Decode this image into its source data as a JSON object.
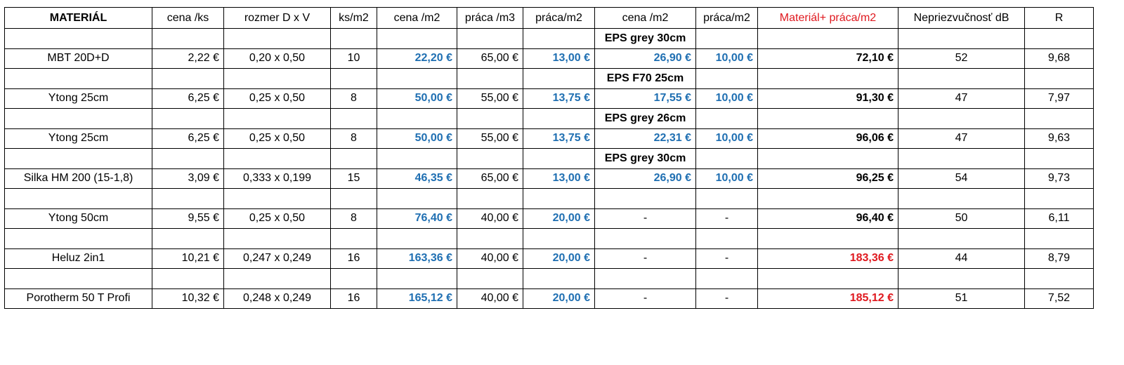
{
  "table": {
    "header": [
      "MATERIÁL",
      "cena /ks",
      "rozmer D x V",
      "ks/m2",
      "cena /m2",
      "práca /m3",
      "práca/m2",
      "cena /m2",
      "práca/m2",
      "Materiál+ práca/m2",
      "Nepriezvučnosť dB",
      "R"
    ],
    "header_colors": {
      "9": "#e0191f"
    },
    "rows": [
      {
        "insulation": "EPS grey 30cm",
        "cells": [
          "MBT 20D+D",
          "2,22 €",
          "0,20 x 0,50",
          "10",
          "22,20 €",
          "65,00 €",
          "13,00 €",
          "26,90 €",
          "10,00 €",
          "72,10 €",
          "52",
          "9,68"
        ]
      },
      {
        "insulation": "EPS F70 25cm",
        "cells": [
          "Ytong 25cm",
          "6,25 €",
          "0,25 x 0,50",
          "8",
          "50,00 €",
          "55,00 €",
          "13,75 €",
          "17,55 €",
          "10,00 €",
          "91,30 €",
          "47",
          "7,97"
        ]
      },
      {
        "insulation": "EPS grey 26cm",
        "cells": [
          "Ytong 25cm",
          "6,25 €",
          "0,25 x 0,50",
          "8",
          "50,00 €",
          "55,00 €",
          "13,75 €",
          "22,31 €",
          "10,00 €",
          "96,06 €",
          "47",
          "9,63"
        ]
      },
      {
        "insulation": "EPS grey 30cm",
        "cells": [
          "Silka HM 200 (15-1,8)",
          "3,09 €",
          "0,333 x 0,199",
          "15",
          "46,35 €",
          "65,00 €",
          "13,00 €",
          "26,90 €",
          "10,00 €",
          "96,25 €",
          "54",
          "9,73"
        ]
      },
      {
        "cells": [
          "Ytong 50cm",
          "9,55 €",
          "0,25 x 0,50",
          "8",
          "76,40 €",
          "40,00 €",
          "20,00 €",
          "-",
          "-",
          "96,40 €",
          "50",
          "6,11"
        ]
      },
      {
        "cells": [
          "Heluz 2in1",
          "10,21 €",
          "0,247 x 0,249",
          "16",
          "163,36 €",
          "40,00 €",
          "20,00 €",
          "-",
          "-",
          "183,36 €",
          "44",
          "8,79"
        ],
        "total_color": "#e0191f"
      },
      {
        "cells": [
          "Porotherm 50 T Profi",
          "10,32 €",
          "0,248 x 0,249",
          "16",
          "165,12 €",
          "40,00 €",
          "20,00 €",
          "-",
          "-",
          "185,12 €",
          "51",
          "7,52"
        ],
        "total_color": "#e0191f"
      }
    ]
  }
}
